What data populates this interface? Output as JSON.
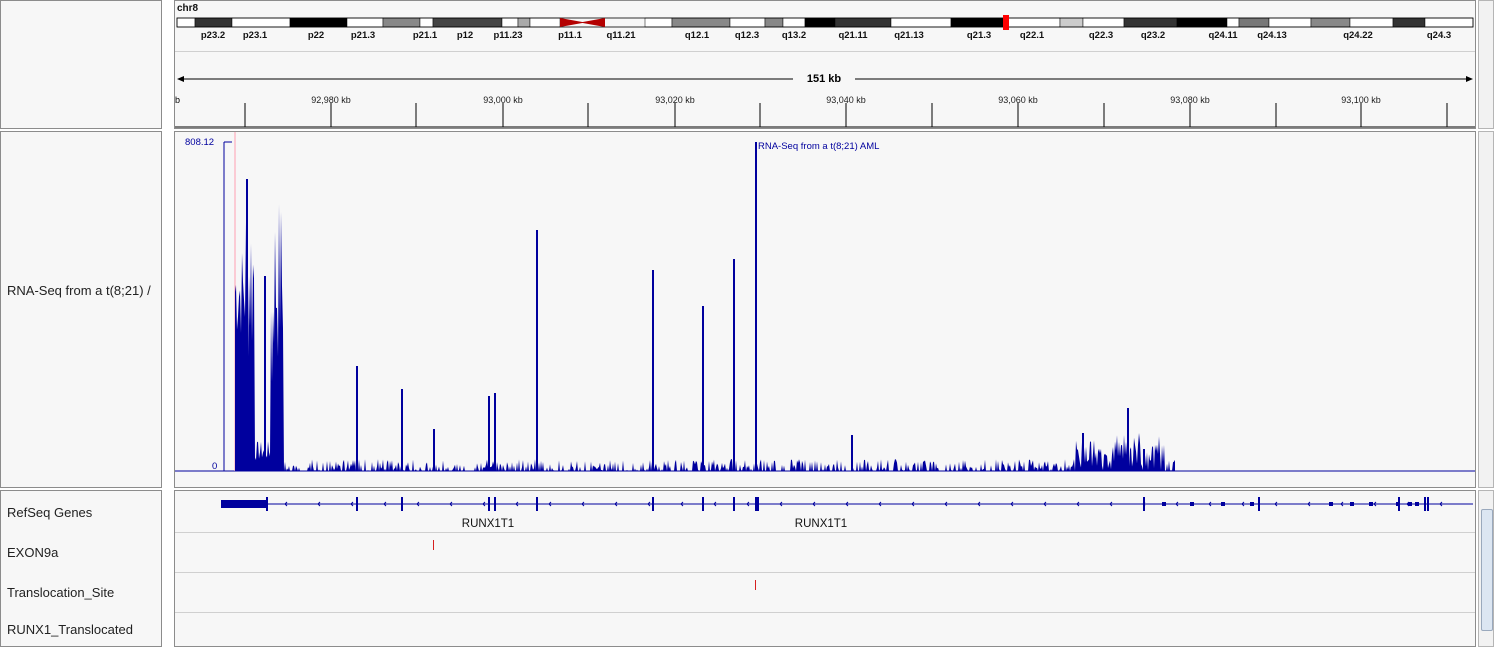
{
  "header": {
    "chromosome": "chr8",
    "span_label": "151 kb",
    "ruler_ticks": [
      "92,980 kb",
      "93,000 kb",
      "93,020 kb",
      "93,040 kb",
      "93,060 kb",
      "93,080 kb",
      "93,100 kb"
    ],
    "ruler_start_fragment": "b"
  },
  "ideogram": {
    "bands": [
      "p23.2",
      "p23.1",
      "p22",
      "p21.3",
      "p21.1",
      "p12",
      "p11.23",
      "p11.1",
      "q11.21",
      "q12.1",
      "q12.3",
      "q13.2",
      "q21.11",
      "q21.13",
      "q21.3",
      "q22.1",
      "q22.3",
      "q23.2",
      "q24.11",
      "q24.13",
      "q24.22",
      "q24.3"
    ],
    "highlight_color": "#ff0000",
    "centromere_color": "#b40000"
  },
  "tracks": {
    "rnaseq": {
      "name": "RNA-Seq from a t(8;21) /",
      "title": "RNA-Seq from a t(8;21) AML",
      "max_label": "808.12",
      "min_label": "0",
      "color": "#00009e"
    },
    "refseq": {
      "name": "RefSeq Genes",
      "gene_labels": [
        "RUNX1T1",
        "RUNX1T1"
      ],
      "color": "#00009e"
    },
    "exon9a": {
      "name": "EXON9a",
      "marker_color": "#d62020"
    },
    "translocation": {
      "name": "Translocation_Site",
      "marker_color": "#d62020"
    },
    "runx1": {
      "name": "RUNX1_Translocated"
    }
  }
}
